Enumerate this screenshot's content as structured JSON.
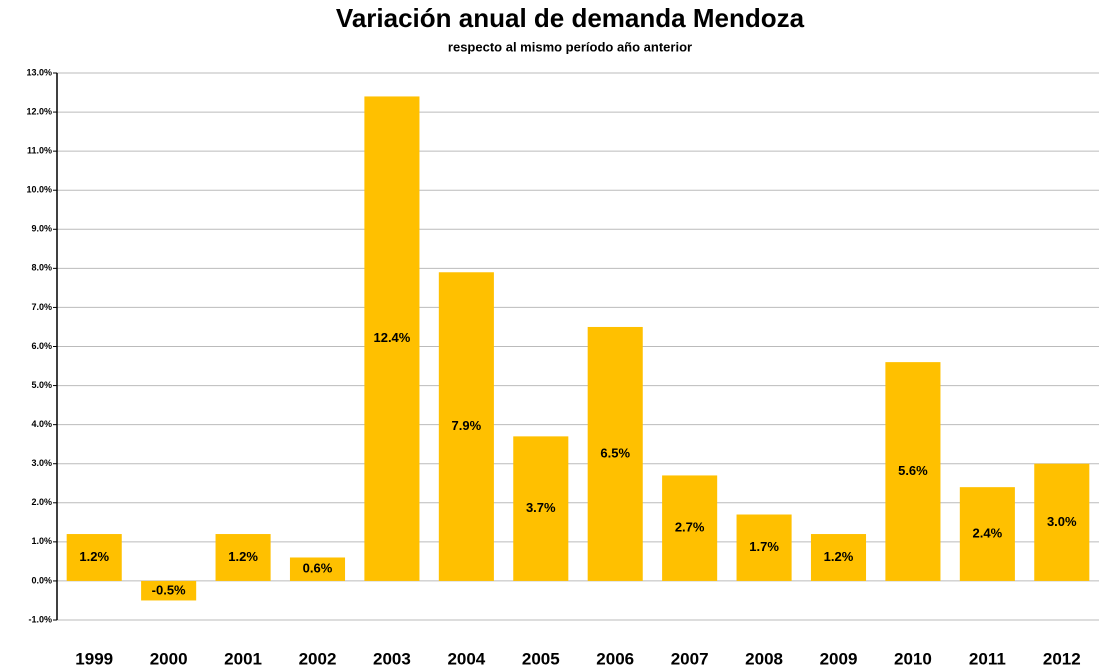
{
  "chart_data": {
    "type": "bar",
    "title": "Variación anual de demanda Mendoza",
    "subtitle": "respecto al mismo período año anterior",
    "categories": [
      "1999",
      "2000",
      "2001",
      "2002",
      "2003",
      "2004",
      "2005",
      "2006",
      "2007",
      "2008",
      "2009",
      "2010",
      "2011",
      "2012"
    ],
    "values": [
      1.2,
      -0.5,
      1.2,
      0.6,
      12.4,
      7.9,
      3.7,
      6.5,
      2.7,
      1.7,
      1.2,
      5.6,
      2.4,
      3.0
    ],
    "value_labels": [
      "1.2%",
      "-0.5%",
      "1.2%",
      "0.6%",
      "12.4%",
      "7.9%",
      "3.7%",
      "6.5%",
      "2.7%",
      "1.7%",
      "1.2%",
      "5.6%",
      "2.4%",
      "3.0%"
    ],
    "color": "#ffc000",
    "ylim": [
      -1,
      13
    ],
    "yticks": [
      {
        "value": -1,
        "label": "-1.0%"
      },
      {
        "value": 0,
        "label": "0.0%"
      },
      {
        "value": 1,
        "label": "1.0%"
      },
      {
        "value": 2,
        "label": "2.0%"
      },
      {
        "value": 3,
        "label": "3.0%"
      },
      {
        "value": 4,
        "label": "4.0%"
      },
      {
        "value": 5,
        "label": "5.0%"
      },
      {
        "value": 6,
        "label": "6.0%"
      },
      {
        "value": 7,
        "label": "7.0%"
      },
      {
        "value": 8,
        "label": "8.0%"
      },
      {
        "value": 9,
        "label": "9.0%"
      },
      {
        "value": 10,
        "label": "10.0%"
      },
      {
        "value": 11,
        "label": "11.0%"
      },
      {
        "value": 12,
        "label": "12.0%"
      },
      {
        "value": 13,
        "label": "13.0%"
      }
    ],
    "grid": true
  }
}
